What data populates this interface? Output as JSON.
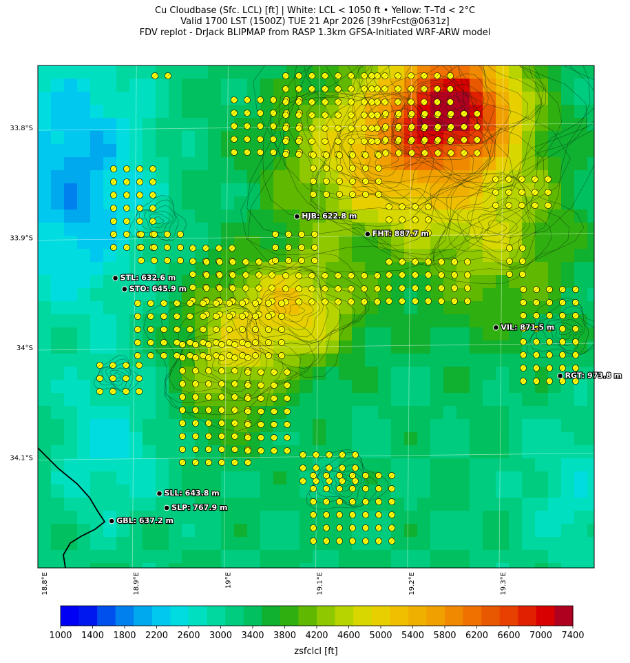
{
  "title": {
    "line1": "Cu Cloudbase (Sfc. LCL) [ft]  |  White: LCL < 1050 ft • Yellow: T–Td < 2°C",
    "line2": "Valid 1700 LST (1500Z) TUE 21 Apr 2026 [39hrFcst@0631z]",
    "line3": "FDV replot - DrJack BLIPMAP from RASP 1.3km GFSA-Initiated WRF-ARW model"
  },
  "map": {
    "lat_labels": [
      "33.8°S",
      "33.9°S",
      "34°S",
      "34.1°S"
    ],
    "lon_labels": [
      "18.8°E",
      "18.9°E",
      "19°E",
      "19.1°E",
      "19.2°E",
      "19.3°E"
    ],
    "stations": [
      {
        "id": "HJB",
        "label": "HJB: 622.8 m",
        "lon": 19.075,
        "lat": -33.881
      },
      {
        "id": "FHT",
        "label": "FHT: 887.7 m",
        "lon": 19.152,
        "lat": -33.897
      },
      {
        "id": "STL",
        "label": "STL: 632.6 m",
        "lon": 18.877,
        "lat": -33.937
      },
      {
        "id": "STO",
        "label": "STO: 645.9 m",
        "lon": 18.887,
        "lat": -33.947
      },
      {
        "id": "VIL",
        "label": "VIL: 871.5 m",
        "lon": 19.292,
        "lat": -33.982
      },
      {
        "id": "RGT",
        "label": "RGT: 973.8 m",
        "lon": 19.362,
        "lat": -34.026
      },
      {
        "id": "SLL",
        "label": "SLL: 643.8 m",
        "lon": 18.925,
        "lat": -34.133
      },
      {
        "id": "SLP",
        "label": "SLP: 767.9 m",
        "lon": 18.933,
        "lat": -34.146
      },
      {
        "id": "GBL",
        "label": "GBL: 637.2 m",
        "lon": 18.873,
        "lat": -34.158
      }
    ],
    "marker_color_yellow": "#ffff00"
  },
  "colorbar": {
    "label": "zsfclcl [ft]",
    "ticks": [
      "1000",
      "1400",
      "1800",
      "2200",
      "2600",
      "3000",
      "3400",
      "3800",
      "4200",
      "4600",
      "5000",
      "5400",
      "5800",
      "6200",
      "6600",
      "7000",
      "7400"
    ],
    "colors": [
      "#0000f5",
      "#0018f0",
      "#0050ee",
      "#0080ee",
      "#00a8ee",
      "#00c8ee",
      "#00dce0",
      "#00e0c0",
      "#00d8a0",
      "#00cc80",
      "#00c060",
      "#10b030",
      "#30b010",
      "#60b800",
      "#90c800",
      "#b8d400",
      "#d8d800",
      "#e8d000",
      "#f0c000",
      "#f0b000",
      "#f0a000",
      "#f08800",
      "#f07000",
      "#e85800",
      "#e84000",
      "#e02000",
      "#d80000",
      "#b00020"
    ]
  }
}
